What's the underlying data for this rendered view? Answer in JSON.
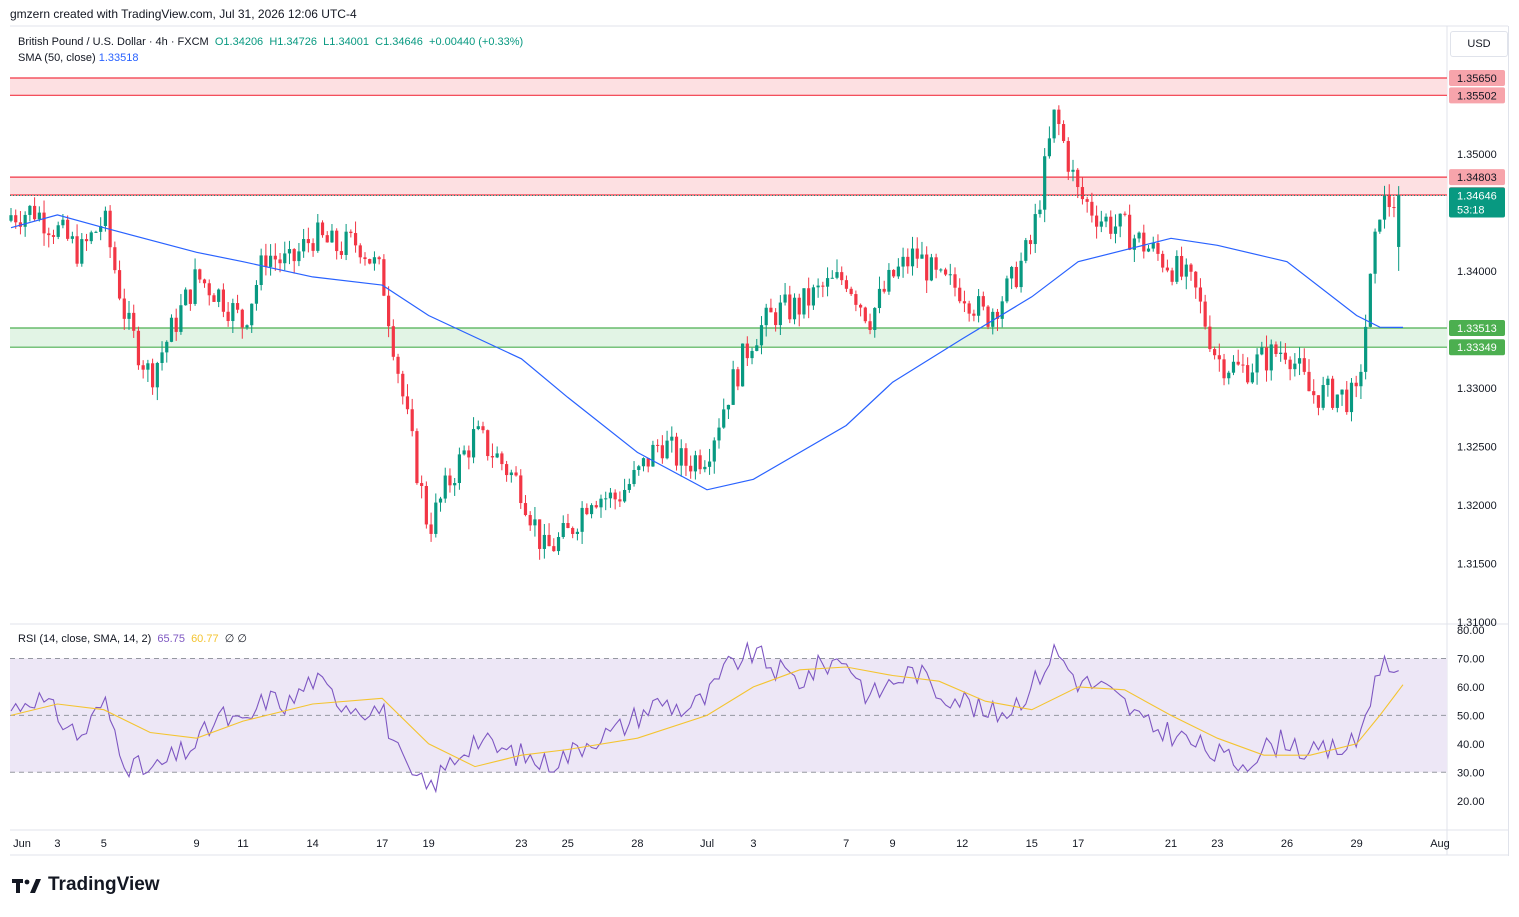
{
  "header": {
    "credit": "gmzern created with TradingView.com, Jul 31, 2026 12:06 UTC-4"
  },
  "legend": {
    "symbol": "British Pound / U.S. Dollar · 4h · FXCM",
    "open": "O1.34206",
    "high": "H1.34726",
    "low": "L1.34001",
    "close": "C1.34646",
    "change": "+0.00440 (+0.33%)",
    "sma_label": "SMA (50, close)",
    "sma_value": "1.33518",
    "rsi_label": "RSI (14, close, SMA, 14, 2)",
    "rsi_value": "65.75",
    "rsi_sma_value": "60.77",
    "rsi_extra": "∅ ∅"
  },
  "currency": "USD",
  "brand": {
    "name": "TradingView"
  },
  "colors": {
    "up": "#089981",
    "down": "#f23645",
    "sma": "#2962ff",
    "rsi": "#7e57c2",
    "rsi_sma": "#f4c430",
    "resistance_fill": "#fde0e2",
    "resistance_line": "#f23645",
    "support_fill": "#e2f4e5",
    "support_line": "#4caf50",
    "rsi_band": "#ede7f6"
  },
  "chart_data": [
    {
      "type": "candlestick",
      "title": "British Pound / U.S. Dollar · 4h · FXCM",
      "ylim": [
        1.31,
        1.3565
      ],
      "y_ticks": [
        "1.31000",
        "1.31500",
        "1.32000",
        "1.32500",
        "1.33000",
        "1.33500",
        "1.34000",
        "1.34500",
        "1.35000"
      ],
      "x_ticks": [
        "Jun",
        "3",
        "5",
        "9",
        "11",
        "14",
        "17",
        "19",
        "23",
        "25",
        "28",
        "Jul",
        "3",
        "7",
        "9",
        "12",
        "15",
        "17",
        "21",
        "23",
        "26",
        "29",
        "Aug"
      ],
      "zones": [
        {
          "name": "resistance-upper",
          "from": 1.35502,
          "to": 1.3565,
          "labels": [
            "1.35650",
            "1.35502"
          ]
        },
        {
          "name": "resistance-lower",
          "from": 1.3465,
          "to": 1.34803,
          "labels": [
            "1.34803",
            "1.34650"
          ]
        },
        {
          "name": "support",
          "from": 1.33349,
          "to": 1.33513,
          "labels": [
            "1.33513",
            "1.33349"
          ]
        }
      ],
      "last_price": "1.34646",
      "countdown": "53:18",
      "close_path": [
        [
          "Jun 1",
          1.3448
        ],
        [
          "Jun 2",
          1.3452
        ],
        [
          "Jun 3",
          1.3435
        ],
        [
          "Jun 4",
          1.3415
        ],
        [
          "Jun 5",
          1.3445
        ],
        [
          "Jun 6",
          1.3355
        ],
        [
          "Jun 7",
          1.331
        ],
        [
          "Jun 9",
          1.3395
        ],
        [
          "Jun 10",
          1.338
        ],
        [
          "Jun 11",
          1.3355
        ],
        [
          "Jun 12",
          1.3415
        ],
        [
          "Jun 13",
          1.3405
        ],
        [
          "Jun 14",
          1.343
        ],
        [
          "Jun 15",
          1.342
        ],
        [
          "Jun 16",
          1.3425
        ],
        [
          "Jun 17",
          1.3395
        ],
        [
          "Jun 18",
          1.328
        ],
        [
          "Jun 19",
          1.318
        ],
        [
          "Jun 20",
          1.3225
        ],
        [
          "Jun 21",
          1.326
        ],
        [
          "Jun 22",
          1.324
        ],
        [
          "Jun 23",
          1.3215
        ],
        [
          "Jun 24",
          1.316
        ],
        [
          "Jun 25",
          1.3175
        ],
        [
          "Jun 26",
          1.321
        ],
        [
          "Jun 27",
          1.3205
        ],
        [
          "Jun 28",
          1.3225
        ],
        [
          "Jun 29",
          1.3255
        ],
        [
          "Jun 30",
          1.3235
        ],
        [
          "Jul 1",
          1.3245
        ],
        [
          "Jul 2",
          1.33
        ],
        [
          "Jul 3",
          1.3345
        ],
        [
          "Jul 4",
          1.3365
        ],
        [
          "Jul 5",
          1.337
        ],
        [
          "Jul 6",
          1.3385
        ],
        [
          "Jul 7",
          1.3395
        ],
        [
          "Jul 8",
          1.336
        ],
        [
          "Jul 9",
          1.3395
        ],
        [
          "Jul 10",
          1.3415
        ],
        [
          "Jul 11",
          1.339
        ],
        [
          "Jul 12",
          1.3385
        ],
        [
          "Jul 13",
          1.336
        ],
        [
          "Jul 14",
          1.3385
        ],
        [
          "Jul 15",
          1.3425
        ],
        [
          "Jul 16",
          1.3535
        ],
        [
          "Jul 17",
          1.3465
        ],
        [
          "Jul 18",
          1.3445
        ],
        [
          "Jul 19",
          1.3435
        ],
        [
          "Jul 20",
          1.342
        ],
        [
          "Jul 21",
          1.3405
        ],
        [
          "Jul 22",
          1.3385
        ],
        [
          "Jul 23",
          1.3325
        ],
        [
          "Jul 24",
          1.3315
        ],
        [
          "Jul 25",
          1.3325
        ],
        [
          "Jul 26",
          1.3335
        ],
        [
          "Jul 27",
          1.3295
        ],
        [
          "Jul 28",
          1.3295
        ],
        [
          "Jul 29",
          1.329
        ],
        [
          "Jul 30",
          1.3455
        ],
        [
          "Jul 31",
          1.34646
        ]
      ],
      "sma_50": [
        [
          "Jun 1",
          1.3437
        ],
        [
          "Jun 3",
          1.3448
        ],
        [
          "Jun 5",
          1.3437
        ],
        [
          "Jun 9",
          1.3416
        ],
        [
          "Jun 11",
          1.3408
        ],
        [
          "Jun 14",
          1.3395
        ],
        [
          "Jun 17",
          1.3388
        ],
        [
          "Jun 19",
          1.3362
        ],
        [
          "Jun 23",
          1.3325
        ],
        [
          "Jun 25",
          1.3292
        ],
        [
          "Jun 28",
          1.3245
        ],
        [
          "Jul 1",
          1.3213
        ],
        [
          "Jul 3",
          1.3222
        ],
        [
          "Jul 7",
          1.3268
        ],
        [
          "Jul 9",
          1.3305
        ],
        [
          "Jul 12",
          1.3342
        ],
        [
          "Jul 15",
          1.3378
        ],
        [
          "Jul 17",
          1.3408
        ],
        [
          "Jul 21",
          1.3428
        ],
        [
          "Jul 23",
          1.3422
        ],
        [
          "Jul 26",
          1.3408
        ],
        [
          "Jul 29",
          1.3362
        ],
        [
          "Jul 30",
          1.3352
        ],
        [
          "Jul 31",
          1.33518
        ]
      ]
    },
    {
      "type": "line",
      "title": "RSI (14, close, SMA, 14, 2)",
      "ylim": [
        15,
        80
      ],
      "y_ticks": [
        "20.00",
        "30.00",
        "40.00",
        "50.00",
        "60.00",
        "70.00",
        "80.00"
      ],
      "bands": [
        30,
        70
      ],
      "midline": 50,
      "series": [
        {
          "name": "RSI",
          "values": [
            [
              "Jun 1",
              52
            ],
            [
              "Jun 2",
              57
            ],
            [
              "Jun 3",
              50
            ],
            [
              "Jun 4",
              42
            ],
            [
              "Jun 5",
              55
            ],
            [
              "Jun 6",
              33
            ],
            [
              "Jun 7",
              30
            ],
            [
              "Jun 9",
              40
            ],
            [
              "Jun 10",
              50
            ],
            [
              "Jun 11",
              46
            ],
            [
              "Jun 12",
              56
            ],
            [
              "Jun 13",
              54
            ],
            [
              "Jun 14",
              63
            ],
            [
              "Jun 15",
              56
            ],
            [
              "Jun 16",
              53
            ],
            [
              "Jun 17",
              52
            ],
            [
              "Jun 18",
              30
            ],
            [
              "Jun 19",
              24
            ],
            [
              "Jun 20",
              34
            ],
            [
              "Jun 21",
              42
            ],
            [
              "Jun 22",
              38
            ],
            [
              "Jun 23",
              36
            ],
            [
              "Jun 24",
              33
            ],
            [
              "Jun 25",
              36
            ],
            [
              "Jun 26",
              42
            ],
            [
              "Jun 27",
              44
            ],
            [
              "Jun 28",
              50
            ],
            [
              "Jun 29",
              55
            ],
            [
              "Jun 30",
              52
            ],
            [
              "Jul 1",
              56
            ],
            [
              "Jul 2",
              68
            ],
            [
              "Jul 3",
              72
            ],
            [
              "Jul 4",
              66
            ],
            [
              "Jul 5",
              62
            ],
            [
              "Jul 6",
              68
            ],
            [
              "Jul 7",
              70
            ],
            [
              "Jul 8",
              56
            ],
            [
              "Jul 9",
              62
            ],
            [
              "Jul 10",
              66
            ],
            [
              "Jul 11",
              58
            ],
            [
              "Jul 12",
              56
            ],
            [
              "Jul 13",
              50
            ],
            [
              "Jul 14",
              52
            ],
            [
              "Jul 15",
              60
            ],
            [
              "Jul 16",
              73
            ],
            [
              "Jul 17",
              62
            ],
            [
              "Jul 18",
              60
            ],
            [
              "Jul 19",
              54
            ],
            [
              "Jul 20",
              46
            ],
            [
              "Jul 21",
              44
            ],
            [
              "Jul 22",
              40
            ],
            [
              "Jul 23",
              36
            ],
            [
              "Jul 24",
              33
            ],
            [
              "Jul 25",
              38
            ],
            [
              "Jul 26",
              42
            ],
            [
              "Jul 27",
              36
            ],
            [
              "Jul 28",
              38
            ],
            [
              "Jul 29",
              40
            ],
            [
              "Jul 30",
              68
            ],
            [
              "Jul 31",
              65.75
            ]
          ]
        },
        {
          "name": "RSI SMA",
          "values": [
            [
              "Jun 1",
              50
            ],
            [
              "Jun 3",
              54
            ],
            [
              "Jun 5",
              52
            ],
            [
              "Jun 7",
              44
            ],
            [
              "Jun 9",
              42
            ],
            [
              "Jun 11",
              48
            ],
            [
              "Jun 14",
              54
            ],
            [
              "Jun 17",
              56
            ],
            [
              "Jun 19",
              40
            ],
            [
              "Jun 21",
              32
            ],
            [
              "Jun 23",
              36
            ],
            [
              "Jun 25",
              38
            ],
            [
              "Jun 28",
              42
            ],
            [
              "Jul 1",
              50
            ],
            [
              "Jul 3",
              60
            ],
            [
              "Jul 5",
              66
            ],
            [
              "Jul 7",
              67
            ],
            [
              "Jul 9",
              64
            ],
            [
              "Jul 11",
              62
            ],
            [
              "Jul 13",
              55
            ],
            [
              "Jul 15",
              52
            ],
            [
              "Jul 17",
              60
            ],
            [
              "Jul 19",
              59
            ],
            [
              "Jul 21",
              50
            ],
            [
              "Jul 23",
              42
            ],
            [
              "Jul 25",
              36
            ],
            [
              "Jul 27",
              36
            ],
            [
              "Jul 29",
              40
            ],
            [
              "Jul 30",
              50
            ],
            [
              "Jul 31",
              60.77
            ]
          ]
        }
      ]
    }
  ]
}
